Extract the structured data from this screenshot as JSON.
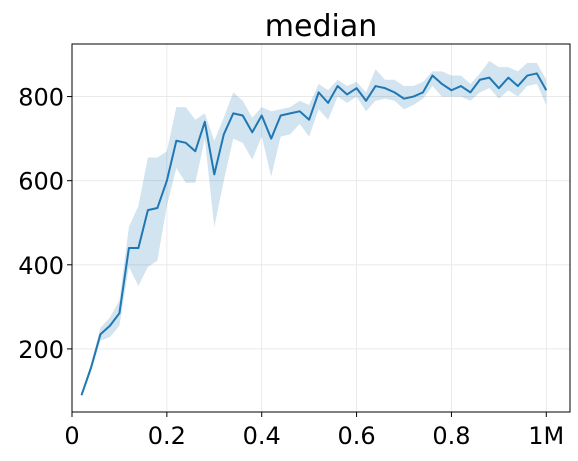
{
  "chart_data": {
    "type": "line",
    "title": "median",
    "xlabel": "",
    "ylabel": "",
    "xlim": [
      0.0,
      1.05
    ],
    "ylim": [
      50,
      925
    ],
    "grid": true,
    "x_ticks": [
      0.0,
      0.2,
      0.4,
      0.6,
      0.8,
      1.0
    ],
    "x_tick_labels": [
      "0",
      "0.2",
      "0.4",
      "0.6",
      "0.8",
      "1M"
    ],
    "y_ticks": [
      200,
      400,
      600,
      800
    ],
    "y_tick_labels": [
      "200",
      "400",
      "600",
      "800"
    ],
    "colors": {
      "line": "#1f77b4",
      "band": "#1f77b4"
    },
    "band_opacity": 0.2,
    "series": [
      {
        "x": [
          0.02,
          0.04,
          0.06,
          0.08,
          0.1,
          0.12,
          0.14,
          0.16,
          0.18,
          0.2,
          0.22,
          0.24,
          0.26,
          0.28,
          0.3,
          0.32,
          0.34,
          0.36,
          0.38,
          0.4,
          0.42,
          0.44,
          0.46,
          0.48,
          0.5,
          0.52,
          0.54,
          0.56,
          0.58,
          0.6,
          0.62,
          0.64,
          0.66,
          0.68,
          0.7,
          0.72,
          0.74,
          0.76,
          0.78,
          0.8,
          0.82,
          0.84,
          0.86,
          0.88,
          0.9,
          0.92,
          0.94,
          0.96,
          0.98,
          1.0
        ],
        "y": [
          90,
          155,
          235,
          255,
          285,
          440,
          440,
          530,
          535,
          600,
          695,
          690,
          670,
          740,
          615,
          710,
          760,
          755,
          715,
          755,
          700,
          755,
          760,
          765,
          745,
          810,
          785,
          825,
          805,
          820,
          790,
          825,
          820,
          810,
          795,
          800,
          810,
          850,
          830,
          815,
          825,
          810,
          840,
          845,
          820,
          845,
          825,
          850,
          855,
          815
        ],
        "lower": [
          85,
          145,
          220,
          228,
          255,
          395,
          350,
          395,
          410,
          540,
          630,
          595,
          595,
          700,
          490,
          600,
          700,
          690,
          650,
          705,
          610,
          705,
          710,
          735,
          705,
          770,
          745,
          800,
          785,
          800,
          765,
          790,
          795,
          790,
          770,
          780,
          795,
          825,
          800,
          800,
          800,
          790,
          810,
          820,
          795,
          815,
          800,
          825,
          830,
          780
        ],
        "upper": [
          95,
          165,
          250,
          275,
          315,
          490,
          540,
          655,
          655,
          670,
          775,
          775,
          745,
          760,
          695,
          750,
          810,
          790,
          750,
          775,
          765,
          770,
          775,
          790,
          780,
          830,
          815,
          840,
          825,
          835,
          810,
          865,
          840,
          840,
          825,
          825,
          835,
          860,
          860,
          850,
          850,
          830,
          855,
          885,
          870,
          870,
          860,
          880,
          880,
          840
        ]
      }
    ]
  }
}
